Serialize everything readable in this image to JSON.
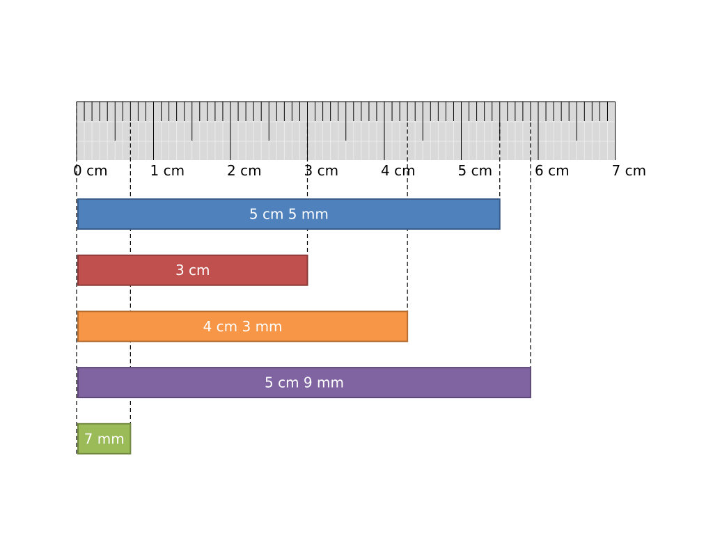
{
  "ruler": {
    "unit_label": "cm",
    "max_cm": 7,
    "minor_divisions_per_cm": 10,
    "tick_labels": [
      "0 cm",
      "1 cm",
      "2 cm",
      "3 cm",
      "4 cm",
      "5 cm",
      "6 cm",
      "7 cm"
    ],
    "fill_color": "#d9d9d9",
    "tick_color": "#000000"
  },
  "bars": [
    {
      "label": "5 cm 5 mm",
      "length_mm": 55,
      "fill": "#4f81bd",
      "stroke": "#385d8a"
    },
    {
      "label": "3 cm",
      "length_mm": 30,
      "fill": "#c0504d",
      "stroke": "#8c3836"
    },
    {
      "label": "4 cm 3 mm",
      "length_mm": 43,
      "fill": "#f79646",
      "stroke": "#b66d31"
    },
    {
      "label": "5 cm 9 mm",
      "length_mm": 59,
      "fill": "#8064a2",
      "stroke": "#5c4776"
    },
    {
      "label": "7 mm",
      "length_mm": 7,
      "fill": "#9bbb59",
      "stroke": "#71893f"
    }
  ]
}
